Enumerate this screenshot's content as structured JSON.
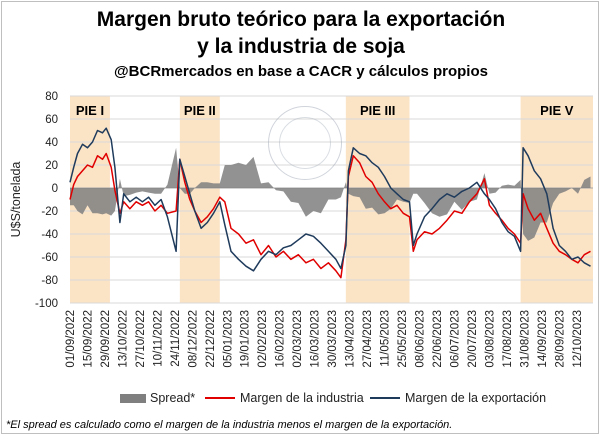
{
  "title": {
    "line1": "Margen bruto teórico para la exportación",
    "line2": "y la industria de soja",
    "line3": "@BCRmercados en base a CACR y cálculos propios"
  },
  "footnote": "*El spread es calculado como el margen de la industria menos el margen de la exportación.",
  "watermark_icon": "bolsa-de-comercio-de-rosario-seal-icon",
  "colors": {
    "spread": "#7f7f7f",
    "industria": "#e00000",
    "exportacion": "#1f3b5c",
    "pie_band": "#fbe3c6",
    "grid": "#d9d9d9"
  },
  "chart_data": {
    "type": "line",
    "ylabel": "U$S/tonelada",
    "ylim": [
      -100,
      80
    ],
    "yticks": [
      -100,
      -80,
      -60,
      -40,
      -20,
      0,
      20,
      40,
      60,
      80
    ],
    "xlim": [
      "2022-09-01",
      "2023-10-25"
    ],
    "xtick_labels": [
      "01/09/2022",
      "15/09/2022",
      "29/09/2022",
      "13/10/2022",
      "27/10/2022",
      "10/11/2022",
      "24/11/2022",
      "08/12/2022",
      "22/12/2022",
      "05/01/2023",
      "19/01/2023",
      "02/02/2023",
      "16/02/2023",
      "02/03/2023",
      "16/03/2023",
      "30/03/2023",
      "13/04/2023",
      "27/04/2023",
      "11/05/2023",
      "25/05/2023",
      "08/06/2023",
      "22/06/2023",
      "06/07/2023",
      "20/07/2023",
      "03/08/2023",
      "17/08/2023",
      "31/08/2023",
      "14/09/2023",
      "28/09/2023",
      "12/10/2023"
    ],
    "grid": "horizontal",
    "legend_position": "bottom",
    "periods": [
      {
        "label": "PIE I",
        "start": "2022-09-01",
        "end": "2022-10-03"
      },
      {
        "label": "PIE II",
        "start": "2022-11-28",
        "end": "2022-12-30"
      },
      {
        "label": "PIE III",
        "start": "2023-04-10",
        "end": "2023-05-31"
      },
      {
        "label": "PIE V",
        "start": "2023-08-28",
        "end": "2023-10-25"
      }
    ],
    "series": [
      {
        "name": "Margen de la industria",
        "type": "line",
        "points": [
          [
            "2022-09-01",
            -10
          ],
          [
            "2022-09-04",
            3
          ],
          [
            "2022-09-07",
            10
          ],
          [
            "2022-09-11",
            15
          ],
          [
            "2022-09-15",
            20
          ],
          [
            "2022-09-19",
            18
          ],
          [
            "2022-09-23",
            28
          ],
          [
            "2022-09-27",
            25
          ],
          [
            "2022-09-30",
            30
          ],
          [
            "2022-10-04",
            18
          ],
          [
            "2022-10-07",
            -2
          ],
          [
            "2022-10-11",
            -22
          ],
          [
            "2022-10-14",
            -12
          ],
          [
            "2022-10-19",
            -18
          ],
          [
            "2022-10-24",
            -12
          ],
          [
            "2022-10-29",
            -15
          ],
          [
            "2022-11-03",
            -12
          ],
          [
            "2022-11-08",
            -20
          ],
          [
            "2022-11-13",
            -15
          ],
          [
            "2022-11-18",
            -22
          ],
          [
            "2022-11-25",
            -20
          ],
          [
            "2022-11-28",
            25
          ],
          [
            "2022-12-02",
            5
          ],
          [
            "2022-12-06",
            -10
          ],
          [
            "2022-12-10",
            -20
          ],
          [
            "2022-12-15",
            -30
          ],
          [
            "2022-12-20",
            -25
          ],
          [
            "2022-12-25",
            -18
          ],
          [
            "2022-12-30",
            -8
          ],
          [
            "2023-01-03",
            -12
          ],
          [
            "2023-01-08",
            -35
          ],
          [
            "2023-01-14",
            -40
          ],
          [
            "2023-01-20",
            -48
          ],
          [
            "2023-01-26",
            -45
          ],
          [
            "2023-02-01",
            -58
          ],
          [
            "2023-02-07",
            -50
          ],
          [
            "2023-02-13",
            -60
          ],
          [
            "2023-02-19",
            -55
          ],
          [
            "2023-02-25",
            -62
          ],
          [
            "2023-03-03",
            -58
          ],
          [
            "2023-03-09",
            -65
          ],
          [
            "2023-03-15",
            -62
          ],
          [
            "2023-03-21",
            -70
          ],
          [
            "2023-03-27",
            -65
          ],
          [
            "2023-04-02",
            -72
          ],
          [
            "2023-04-06",
            -78
          ],
          [
            "2023-04-10",
            -45
          ],
          [
            "2023-04-12",
            10
          ],
          [
            "2023-04-16",
            28
          ],
          [
            "2023-04-21",
            22
          ],
          [
            "2023-04-26",
            10
          ],
          [
            "2023-05-01",
            5
          ],
          [
            "2023-05-06",
            -5
          ],
          [
            "2023-05-11",
            -12
          ],
          [
            "2023-05-16",
            -18
          ],
          [
            "2023-05-21",
            -15
          ],
          [
            "2023-05-26",
            -22
          ],
          [
            "2023-05-31",
            -25
          ],
          [
            "2023-06-03",
            -55
          ],
          [
            "2023-06-06",
            -45
          ],
          [
            "2023-06-12",
            -38
          ],
          [
            "2023-06-18",
            -40
          ],
          [
            "2023-06-24",
            -35
          ],
          [
            "2023-06-30",
            -28
          ],
          [
            "2023-07-06",
            -20
          ],
          [
            "2023-07-12",
            -22
          ],
          [
            "2023-07-18",
            -12
          ],
          [
            "2023-07-24",
            -5
          ],
          [
            "2023-07-30",
            8
          ],
          [
            "2023-08-03",
            -15
          ],
          [
            "2023-08-08",
            -22
          ],
          [
            "2023-08-13",
            -28
          ],
          [
            "2023-08-18",
            -35
          ],
          [
            "2023-08-23",
            -40
          ],
          [
            "2023-08-28",
            -48
          ],
          [
            "2023-08-30",
            -5
          ],
          [
            "2023-09-03",
            -18
          ],
          [
            "2023-09-08",
            -28
          ],
          [
            "2023-09-13",
            -22
          ],
          [
            "2023-09-18",
            -35
          ],
          [
            "2023-09-23",
            -48
          ],
          [
            "2023-09-28",
            -55
          ],
          [
            "2023-10-03",
            -58
          ],
          [
            "2023-10-08",
            -62
          ],
          [
            "2023-10-13",
            -65
          ],
          [
            "2023-10-18",
            -58
          ],
          [
            "2023-10-23",
            -55
          ]
        ]
      },
      {
        "name": "Margen de la exportación",
        "type": "line",
        "points": [
          [
            "2022-09-01",
            5
          ],
          [
            "2022-09-04",
            18
          ],
          [
            "2022-09-07",
            30
          ],
          [
            "2022-09-11",
            38
          ],
          [
            "2022-09-15",
            35
          ],
          [
            "2022-09-19",
            40
          ],
          [
            "2022-09-23",
            50
          ],
          [
            "2022-09-27",
            48
          ],
          [
            "2022-09-30",
            52
          ],
          [
            "2022-10-04",
            42
          ],
          [
            "2022-10-07",
            18
          ],
          [
            "2022-10-11",
            -30
          ],
          [
            "2022-10-14",
            -5
          ],
          [
            "2022-10-19",
            -12
          ],
          [
            "2022-10-24",
            -8
          ],
          [
            "2022-10-29",
            -12
          ],
          [
            "2022-11-03",
            -8
          ],
          [
            "2022-11-08",
            -15
          ],
          [
            "2022-11-13",
            -10
          ],
          [
            "2022-11-18",
            -25
          ],
          [
            "2022-11-25",
            -55
          ],
          [
            "2022-11-28",
            25
          ],
          [
            "2022-12-02",
            10
          ],
          [
            "2022-12-06",
            -5
          ],
          [
            "2022-12-10",
            -20
          ],
          [
            "2022-12-15",
            -35
          ],
          [
            "2022-12-20",
            -30
          ],
          [
            "2022-12-25",
            -22
          ],
          [
            "2022-12-30",
            -12
          ],
          [
            "2023-01-03",
            -32
          ],
          [
            "2023-01-08",
            -55
          ],
          [
            "2023-01-14",
            -62
          ],
          [
            "2023-01-20",
            -68
          ],
          [
            "2023-01-26",
            -72
          ],
          [
            "2023-02-01",
            -62
          ],
          [
            "2023-02-07",
            -55
          ],
          [
            "2023-02-13",
            -58
          ],
          [
            "2023-02-19",
            -52
          ],
          [
            "2023-02-25",
            -50
          ],
          [
            "2023-03-03",
            -45
          ],
          [
            "2023-03-09",
            -40
          ],
          [
            "2023-03-15",
            -42
          ],
          [
            "2023-03-21",
            -48
          ],
          [
            "2023-03-27",
            -55
          ],
          [
            "2023-04-02",
            -62
          ],
          [
            "2023-04-06",
            -70
          ],
          [
            "2023-04-10",
            -50
          ],
          [
            "2023-04-12",
            15
          ],
          [
            "2023-04-16",
            35
          ],
          [
            "2023-04-21",
            30
          ],
          [
            "2023-04-26",
            28
          ],
          [
            "2023-05-01",
            22
          ],
          [
            "2023-05-06",
            18
          ],
          [
            "2023-05-11",
            10
          ],
          [
            "2023-05-16",
            0
          ],
          [
            "2023-05-21",
            -5
          ],
          [
            "2023-05-26",
            -10
          ],
          [
            "2023-05-31",
            -12
          ],
          [
            "2023-06-03",
            -50
          ],
          [
            "2023-06-06",
            -40
          ],
          [
            "2023-06-12",
            -25
          ],
          [
            "2023-06-18",
            -18
          ],
          [
            "2023-06-24",
            -10
          ],
          [
            "2023-06-30",
            -5
          ],
          [
            "2023-07-06",
            -8
          ],
          [
            "2023-07-12",
            -3
          ],
          [
            "2023-07-18",
            0
          ],
          [
            "2023-07-24",
            5
          ],
          [
            "2023-07-30",
            -5
          ],
          [
            "2023-08-03",
            -10
          ],
          [
            "2023-08-08",
            -18
          ],
          [
            "2023-08-13",
            -30
          ],
          [
            "2023-08-18",
            -38
          ],
          [
            "2023-08-23",
            -42
          ],
          [
            "2023-08-28",
            -55
          ],
          [
            "2023-08-30",
            35
          ],
          [
            "2023-09-03",
            28
          ],
          [
            "2023-09-08",
            15
          ],
          [
            "2023-09-13",
            8
          ],
          [
            "2023-09-18",
            -5
          ],
          [
            "2023-09-23",
            -35
          ],
          [
            "2023-09-28",
            -50
          ],
          [
            "2023-10-03",
            -55
          ],
          [
            "2023-10-08",
            -62
          ],
          [
            "2023-10-13",
            -60
          ],
          [
            "2023-10-18",
            -65
          ],
          [
            "2023-10-23",
            -68
          ]
        ]
      },
      {
        "name": "Spread*",
        "type": "area",
        "points": [
          [
            "2022-09-01",
            -15
          ],
          [
            "2022-09-04",
            -15
          ],
          [
            "2022-09-07",
            -20
          ],
          [
            "2022-09-11",
            -23
          ],
          [
            "2022-09-15",
            -15
          ],
          [
            "2022-09-19",
            -22
          ],
          [
            "2022-09-23",
            -22
          ],
          [
            "2022-09-27",
            -23
          ],
          [
            "2022-09-30",
            -22
          ],
          [
            "2022-10-04",
            -24
          ],
          [
            "2022-10-07",
            -20
          ],
          [
            "2022-10-11",
            8
          ],
          [
            "2022-10-14",
            -7
          ],
          [
            "2022-10-19",
            -6
          ],
          [
            "2022-10-24",
            -4
          ],
          [
            "2022-10-29",
            -3
          ],
          [
            "2022-11-03",
            -4
          ],
          [
            "2022-11-08",
            -5
          ],
          [
            "2022-11-13",
            -5
          ],
          [
            "2022-11-18",
            3
          ],
          [
            "2022-11-25",
            35
          ],
          [
            "2022-11-28",
            0
          ],
          [
            "2022-12-02",
            -5
          ],
          [
            "2022-12-06",
            -5
          ],
          [
            "2022-12-10",
            0
          ],
          [
            "2022-12-15",
            5
          ],
          [
            "2022-12-20",
            5
          ],
          [
            "2022-12-25",
            4
          ],
          [
            "2022-12-30",
            4
          ],
          [
            "2023-01-03",
            20
          ],
          [
            "2023-01-08",
            20
          ],
          [
            "2023-01-14",
            22
          ],
          [
            "2023-01-20",
            20
          ],
          [
            "2023-01-26",
            27
          ],
          [
            "2023-02-01",
            4
          ],
          [
            "2023-02-07",
            5
          ],
          [
            "2023-02-13",
            -2
          ],
          [
            "2023-02-19",
            -3
          ],
          [
            "2023-02-25",
            -12
          ],
          [
            "2023-03-03",
            -13
          ],
          [
            "2023-03-09",
            -25
          ],
          [
            "2023-03-15",
            -20
          ],
          [
            "2023-03-21",
            -22
          ],
          [
            "2023-03-27",
            -10
          ],
          [
            "2023-04-02",
            -10
          ],
          [
            "2023-04-06",
            -8
          ],
          [
            "2023-04-10",
            5
          ],
          [
            "2023-04-12",
            -5
          ],
          [
            "2023-04-16",
            -7
          ],
          [
            "2023-04-21",
            -8
          ],
          [
            "2023-04-26",
            -18
          ],
          [
            "2023-05-01",
            -17
          ],
          [
            "2023-05-06",
            -23
          ],
          [
            "2023-05-11",
            -22
          ],
          [
            "2023-05-16",
            -18
          ],
          [
            "2023-05-21",
            -10
          ],
          [
            "2023-05-26",
            -12
          ],
          [
            "2023-05-31",
            -13
          ],
          [
            "2023-06-03",
            -5
          ],
          [
            "2023-06-06",
            -5
          ],
          [
            "2023-06-12",
            -13
          ],
          [
            "2023-06-18",
            -22
          ],
          [
            "2023-06-24",
            -25
          ],
          [
            "2023-06-30",
            -23
          ],
          [
            "2023-07-06",
            -12
          ],
          [
            "2023-07-12",
            -19
          ],
          [
            "2023-07-18",
            -12
          ],
          [
            "2023-07-24",
            -10
          ],
          [
            "2023-07-30",
            13
          ],
          [
            "2023-08-03",
            -5
          ],
          [
            "2023-08-08",
            -4
          ],
          [
            "2023-08-13",
            2
          ],
          [
            "2023-08-18",
            3
          ],
          [
            "2023-08-23",
            2
          ],
          [
            "2023-08-28",
            7
          ],
          [
            "2023-08-30",
            -40
          ],
          [
            "2023-09-03",
            -46
          ],
          [
            "2023-09-08",
            -43
          ],
          [
            "2023-09-13",
            -30
          ],
          [
            "2023-09-18",
            -30
          ],
          [
            "2023-09-23",
            -13
          ],
          [
            "2023-09-28",
            -5
          ],
          [
            "2023-10-03",
            -3
          ],
          [
            "2023-10-08",
            0
          ],
          [
            "2023-10-13",
            -5
          ],
          [
            "2023-10-18",
            7
          ],
          [
            "2023-10-23",
            10
          ]
        ]
      }
    ]
  }
}
